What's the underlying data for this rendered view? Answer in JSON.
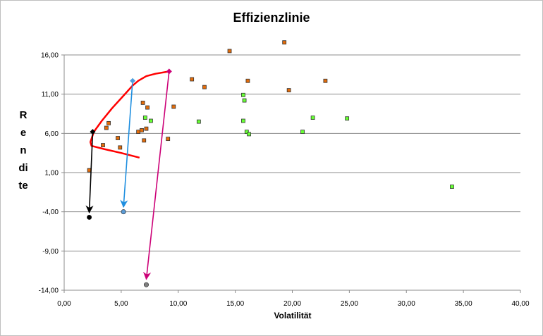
{
  "chart_data": {
    "type": "scatter",
    "title": "Effizienzlinie",
    "xlabel": "Volatilität",
    "ylabel": "Rendite",
    "xlim": [
      0,
      40
    ],
    "ylim": [
      -14,
      16
    ],
    "x_ticks": [
      "0,00",
      "5,00",
      "10,00",
      "15,00",
      "20,00",
      "25,00",
      "30,00",
      "35,00",
      "40,00"
    ],
    "y_ticks": [
      "16,00",
      "11,00",
      "6,00",
      "1,00",
      "-4,00",
      "-9,00",
      "-14,00"
    ],
    "grid": "horizontal",
    "series": [
      {
        "marker": "square",
        "color": "#e36c0a",
        "points": [
          [
            2.2,
            1.3
          ],
          [
            3.4,
            4.5
          ],
          [
            3.7,
            6.7
          ],
          [
            3.9,
            7.3
          ],
          [
            4.7,
            5.4
          ],
          [
            4.9,
            4.2
          ],
          [
            6.5,
            6.2
          ],
          [
            6.8,
            6.4
          ],
          [
            7.0,
            5.1
          ],
          [
            6.9,
            9.9
          ],
          [
            7.2,
            6.6
          ],
          [
            7.3,
            9.3
          ],
          [
            9.1,
            5.3
          ],
          [
            9.6,
            9.4
          ],
          [
            11.2,
            12.9
          ],
          [
            12.3,
            11.9
          ],
          [
            14.5,
            16.5
          ],
          [
            16.1,
            12.7
          ],
          [
            19.3,
            17.6
          ],
          [
            19.7,
            11.5
          ],
          [
            22.9,
            12.7
          ]
        ]
      },
      {
        "marker": "square",
        "color": "#66ff33",
        "points": [
          [
            7.1,
            8.0
          ],
          [
            7.6,
            7.6
          ],
          [
            11.8,
            7.5
          ],
          [
            15.7,
            10.9
          ],
          [
            15.8,
            10.2
          ],
          [
            15.7,
            7.6
          ],
          [
            16.0,
            6.2
          ],
          [
            16.2,
            5.9
          ],
          [
            20.9,
            6.2
          ],
          [
            21.8,
            8.0
          ],
          [
            24.8,
            7.9
          ],
          [
            34.0,
            -0.8
          ]
        ]
      },
      {
        "marker": "line",
        "color": "#ff0000",
        "points": [
          [
            6.6,
            2.9
          ],
          [
            5.0,
            3.5
          ],
          [
            3.5,
            4.0
          ],
          [
            2.4,
            4.4
          ],
          [
            2.3,
            4.9
          ],
          [
            2.6,
            6.2
          ],
          [
            3.3,
            7.6
          ],
          [
            4.2,
            9.2
          ],
          [
            5.2,
            10.8
          ],
          [
            6.0,
            12.1
          ],
          [
            6.5,
            12.7
          ],
          [
            7.2,
            13.3
          ],
          [
            8.0,
            13.6
          ],
          [
            9.2,
            13.9
          ]
        ]
      },
      {
        "marker": "diamond",
        "points": [
          [
            2.5,
            6.2
          ],
          [
            6.0,
            12.7
          ],
          [
            9.2,
            13.9
          ]
        ],
        "colors": [
          "#000000",
          "#4f9fdf",
          "#cc0077"
        ]
      },
      {
        "marker": "circle",
        "points": [
          [
            2.2,
            -4.7
          ],
          [
            5.2,
            -4.0
          ],
          [
            7.2,
            -13.3
          ]
        ],
        "colors": [
          "#000000",
          "#5b9bd5",
          "#7f7f7f"
        ]
      }
    ],
    "arrows": [
      {
        "from": [
          2.5,
          6.2
        ],
        "to": [
          2.2,
          -4.1
        ],
        "color": "#000000"
      },
      {
        "from": [
          6.0,
          12.7
        ],
        "to": [
          5.2,
          -3.4
        ],
        "color": "#1f8fe0"
      },
      {
        "from": [
          9.2,
          13.9
        ],
        "to": [
          7.2,
          -12.6
        ],
        "color": "#cc0077"
      }
    ]
  }
}
